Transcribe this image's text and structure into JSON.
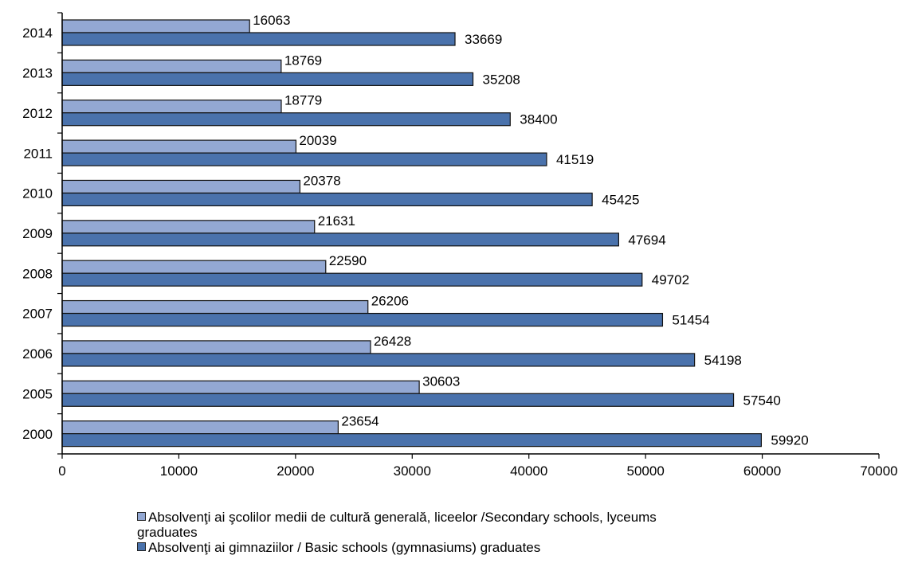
{
  "chart_data": {
    "type": "bar",
    "orientation": "horizontal",
    "categories": [
      "2014",
      "2013",
      "2012",
      "2011",
      "2010",
      "2009",
      "2008",
      "2007",
      "2006",
      "2005",
      "2000"
    ],
    "series": [
      {
        "name": "Absolvenţi ai şcolilor medii de cultură generală, liceelor /Secondary schools, lyceums graduates",
        "color": "#93A8D3",
        "values": [
          16063,
          18769,
          18779,
          20039,
          20378,
          21631,
          22590,
          26206,
          26428,
          30603,
          23654
        ]
      },
      {
        "name": "Absolvenţi ai gimnaziilor / Basic schools (gymnasiums) graduates",
        "color": "#4A72AC",
        "values": [
          33669,
          35208,
          38400,
          41519,
          45425,
          47694,
          49702,
          51454,
          54198,
          57540,
          59920
        ]
      }
    ],
    "xlim": [
      0,
      70000
    ],
    "xticks": [
      0,
      10000,
      20000,
      30000,
      40000,
      50000,
      60000,
      70000
    ],
    "title": "",
    "xlabel": "",
    "ylabel": "",
    "grid": false,
    "legend_position": "bottom",
    "data_labels": true
  },
  "legend": {
    "items": [
      {
        "line1": "Absolvenţi ai şcolilor medii de cultură generală, liceelor /Secondary schools, lyceums",
        "line2": "graduates",
        "color": "#93A8D3"
      },
      {
        "line1": "Absolvenţi ai gimnaziilor / Basic schools (gymnasiums) graduates",
        "line2": "",
        "color": "#4A72AC"
      }
    ]
  }
}
